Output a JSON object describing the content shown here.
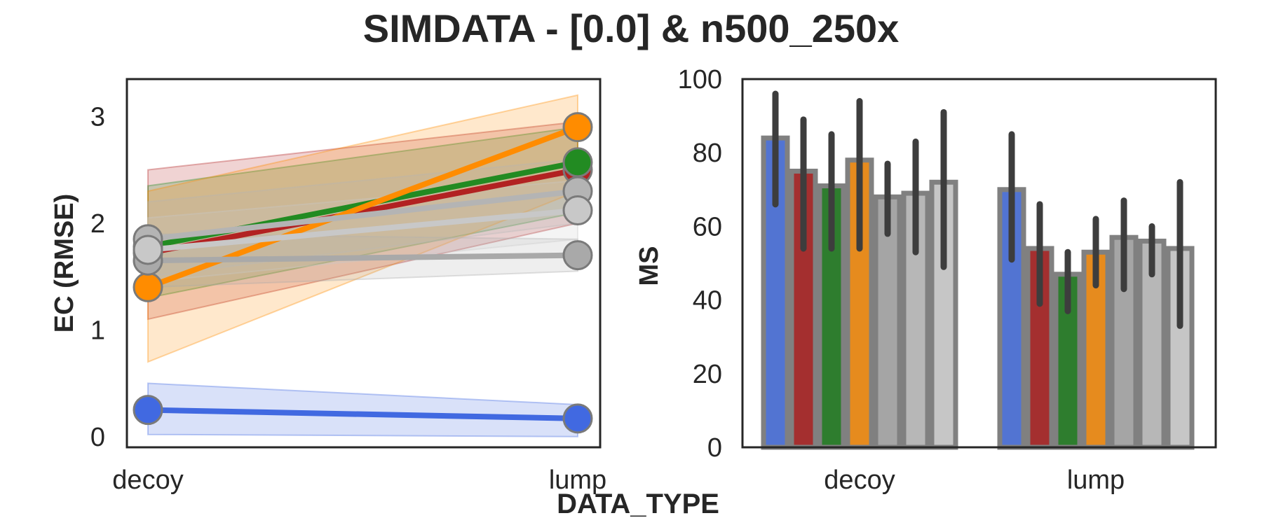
{
  "figure": {
    "title": "SIMDATA - [0.0] & n500_250x",
    "shared_xlabel": "DATA_TYPE"
  },
  "chart_data": [
    {
      "type": "line",
      "ylabel": "EC (RMSE)",
      "x": [
        "decoy",
        "lump"
      ],
      "ylim": [
        -0.1,
        3.35
      ],
      "yticks": [
        0,
        1,
        2,
        3
      ],
      "grid": false,
      "series": [
        {
          "color": "#4169e1",
          "values": [
            0.25,
            0.17
          ],
          "ci_low": [
            0.02,
            0.0
          ],
          "ci_high": [
            0.5,
            0.3
          ]
        },
        {
          "color": "#b22222",
          "values": [
            1.72,
            2.5
          ],
          "ci_low": [
            1.1,
            2.0
          ],
          "ci_high": [
            2.5,
            2.95
          ]
        },
        {
          "color": "#228b22",
          "values": [
            1.78,
            2.57
          ],
          "ci_low": [
            1.3,
            2.1
          ],
          "ci_high": [
            2.35,
            2.9
          ]
        },
        {
          "color": "#ff8c00",
          "values": [
            1.4,
            2.9
          ],
          "ci_low": [
            0.7,
            2.3
          ],
          "ci_high": [
            2.3,
            3.2
          ]
        },
        {
          "color": "#a9a9a9",
          "values": [
            1.65,
            1.7
          ],
          "ci_low": [
            1.4,
            1.55
          ],
          "ci_high": [
            1.9,
            1.85
          ]
        },
        {
          "color": "#b4b4b4",
          "values": [
            1.85,
            2.3
          ],
          "ci_low": [
            1.5,
            2.0
          ],
          "ci_high": [
            2.2,
            2.6
          ]
        },
        {
          "color": "#c8c8c8",
          "values": [
            1.75,
            2.12
          ],
          "ci_low": [
            1.45,
            1.85
          ],
          "ci_high": [
            2.05,
            2.4
          ]
        }
      ]
    },
    {
      "type": "bar",
      "ylabel": "MS",
      "categories": [
        "decoy",
        "lump"
      ],
      "ylim": [
        0,
        100
      ],
      "yticks": [
        0,
        20,
        40,
        60,
        80,
        100
      ],
      "grid": false,
      "series": [
        {
          "color": "#5274d2",
          "values": [
            84,
            70
          ],
          "err_low": [
            66,
            51
          ],
          "err_high": [
            96,
            85
          ]
        },
        {
          "color": "#a42f2f",
          "values": [
            75,
            54
          ],
          "err_low": [
            54,
            39
          ],
          "err_high": [
            89,
            66
          ]
        },
        {
          "color": "#2e7d2e",
          "values": [
            71,
            47
          ],
          "err_low": [
            54,
            37
          ],
          "err_high": [
            85,
            53
          ]
        },
        {
          "color": "#e68b1e",
          "values": [
            78,
            53
          ],
          "err_low": [
            54,
            44
          ],
          "err_high": [
            94,
            62
          ]
        },
        {
          "color": "#a5a5a5",
          "values": [
            68,
            57
          ],
          "err_low": [
            58,
            43
          ],
          "err_high": [
            77,
            67
          ]
        },
        {
          "color": "#b7b7b7",
          "values": [
            69,
            56
          ],
          "err_low": [
            53,
            47
          ],
          "err_high": [
            83,
            60
          ]
        },
        {
          "color": "#c6c6c6",
          "values": [
            72,
            54
          ],
          "err_low": [
            49,
            33
          ],
          "err_high": [
            91,
            72
          ]
        }
      ]
    }
  ]
}
